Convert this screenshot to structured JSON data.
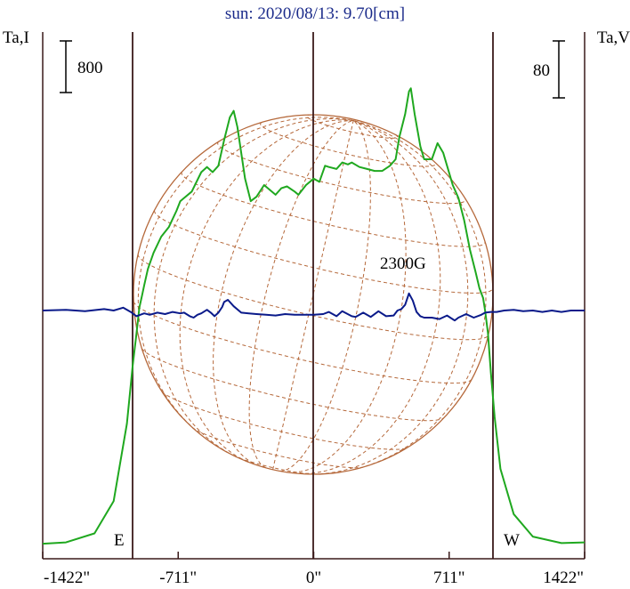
{
  "chart_data": {
    "type": "line",
    "title": "sun: 2020/08/13: 9.70[cm]",
    "left_axis_label": "Ta,I",
    "right_axis_label": "Ta,V",
    "left_scale_bar_label": "800",
    "right_scale_bar_label": "80",
    "east_marker_label": "E",
    "west_marker_label": "W",
    "annotation_label": "2300G",
    "x_tick_labels": [
      "-1422\"",
      "-711\"",
      "0\"",
      "711\"",
      "1422\""
    ],
    "x_ticks": [
      -1422,
      -711,
      0,
      711,
      1422
    ],
    "xlim": [
      -1422,
      1422
    ],
    "limb_positions": [
      -889,
      889
    ],
    "grid": false,
    "colors": {
      "intensity": "#1fa81f",
      "polarization": "#0a1a8a",
      "solar_disk": "#b5683a",
      "axes": "#3a1a1a",
      "title": "#1a2a8a"
    },
    "series": [
      {
        "name": "Ta,I",
        "x": [
          -1422,
          -1300,
          -1150,
          -1050,
          -980,
          -950,
          -930,
          -915,
          -900,
          -889,
          -870,
          -840,
          -800,
          -760,
          -720,
          -700,
          -680,
          -640,
          -590,
          -560,
          -530,
          -500,
          -470,
          -440,
          -420,
          -400,
          -380,
          -360,
          -330,
          -300,
          -260,
          -220,
          -200,
          -170,
          -140,
          -100,
          -80,
          -40,
          0,
          30,
          60,
          80,
          120,
          150,
          180,
          200,
          240,
          280,
          320,
          360,
          400,
          430,
          450,
          480,
          500,
          510,
          530,
          560,
          580,
          620,
          650,
          680,
          700,
          730,
          760,
          790,
          820,
          850,
          870,
          889,
          900,
          915,
          930,
          950,
          980,
          1050,
          1150,
          1300,
          1422
        ],
        "values": [
          40,
          60,
          200,
          700,
          1900,
          2800,
          3300,
          3700,
          3900,
          4050,
          4300,
          4550,
          4800,
          4950,
          5200,
          5350,
          5400,
          5500,
          5800,
          5880,
          5800,
          5900,
          6300,
          6650,
          6750,
          6500,
          6100,
          5700,
          5350,
          5420,
          5600,
          5500,
          5450,
          5550,
          5580,
          5500,
          5450,
          5600,
          5700,
          5650,
          5900,
          5880,
          5850,
          5950,
          5920,
          5950,
          5880,
          5850,
          5820,
          5820,
          5900,
          6000,
          6350,
          6700,
          7050,
          7100,
          6700,
          6200,
          6000,
          6000,
          6250,
          6100,
          5900,
          5600,
          5400,
          5050,
          4600,
          4250,
          4000,
          3850,
          3650,
          3300,
          2700,
          2000,
          1200,
          500,
          150,
          50,
          60
        ]
      },
      {
        "name": "Ta,V",
        "x": [
          -1422,
          -1300,
          -1200,
          -1100,
          -1050,
          -1000,
          -960,
          -930,
          -910,
          -889,
          -860,
          -820,
          -780,
          -740,
          -700,
          -680,
          -650,
          -630,
          -610,
          -590,
          -560,
          -540,
          -520,
          -500,
          -480,
          -470,
          -450,
          -420,
          -380,
          -340,
          -300,
          -250,
          -200,
          -150,
          -100,
          -50,
          0,
          50,
          80,
          100,
          120,
          150,
          200,
          220,
          260,
          300,
          340,
          380,
          420,
          440,
          460,
          480,
          500,
          520,
          540,
          560,
          580,
          620,
          660,
          700,
          740,
          760,
          800,
          840,
          880,
          900,
          930,
          960,
          1000,
          1050,
          1100,
          1150,
          1200,
          1250,
          1300,
          1350,
          1422
        ],
        "values": [
          0,
          1,
          -1,
          2,
          0,
          4,
          -2,
          -8,
          -6,
          -4,
          -6,
          -3,
          -5,
          -2,
          -4,
          -3,
          -8,
          -10,
          -6,
          -4,
          1,
          -3,
          -8,
          -3,
          5,
          12,
          15,
          6,
          -3,
          -4,
          -5,
          -6,
          -7,
          -5,
          -6,
          -6,
          -6,
          -5,
          -2,
          -5,
          -8,
          -1,
          -8,
          -9,
          -3,
          -9,
          -1,
          -8,
          -7,
          0,
          2,
          8,
          24,
          14,
          -2,
          -8,
          -10,
          -10,
          -12,
          -7,
          -14,
          -10,
          -5,
          -10,
          -6,
          -3,
          -2,
          -2,
          0,
          1,
          -1,
          0,
          -2,
          0,
          -2,
          0,
          0
        ]
      }
    ]
  }
}
